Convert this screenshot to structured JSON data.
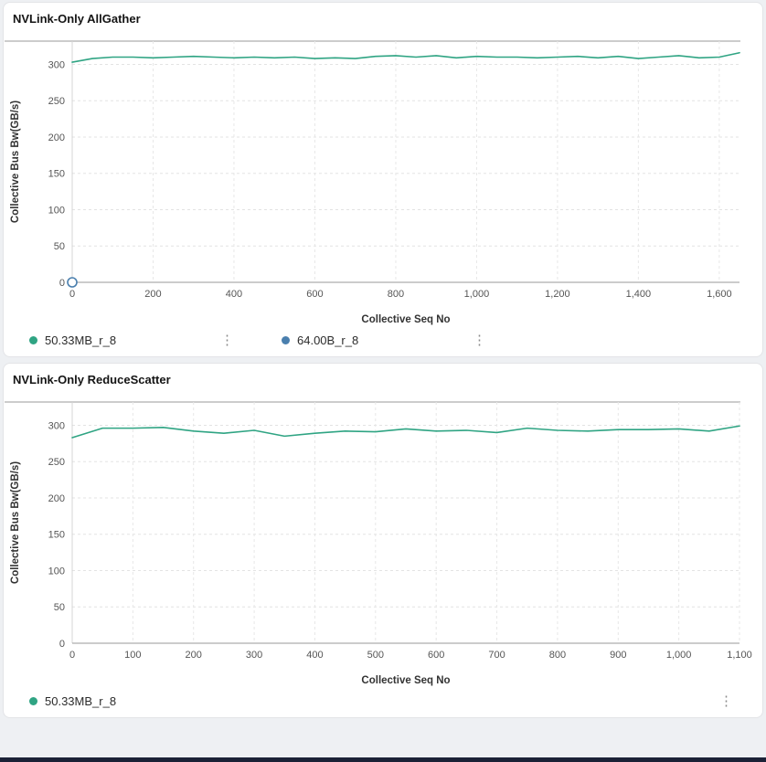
{
  "page": {
    "background": "#eef0f3",
    "accent_green": "#2fa483",
    "accent_blue": "#4a7fae"
  },
  "panels": [
    {
      "title": "NVLink-Only AllGather",
      "legend": [
        {
          "label": "50.33MB_r_8",
          "color": "#2fa483"
        },
        {
          "label": "64.00B_r_8",
          "color": "#4a7fae"
        }
      ]
    },
    {
      "title": "NVLink-Only ReduceScatter",
      "legend": [
        {
          "label": "50.33MB_r_8",
          "color": "#2fa483"
        }
      ]
    }
  ],
  "chart_data": [
    {
      "type": "line",
      "title": "NVLink-Only AllGather",
      "xlabel": "Collective Seq No",
      "ylabel": "Collective Bus Bw(GB/s)",
      "xlim": [
        0,
        1650
      ],
      "ylim": [
        0,
        332
      ],
      "xticks": [
        0,
        200,
        400,
        600,
        800,
        1000,
        1200,
        1400,
        1600
      ],
      "yticks": [
        0,
        50,
        100,
        150,
        200,
        250,
        300
      ],
      "grid": true,
      "legend_position": "bottom",
      "series": [
        {
          "name": "50.33MB_r_8",
          "color": "#2fa483",
          "style": "line",
          "x": [
            0,
            50,
            100,
            150,
            200,
            250,
            300,
            350,
            400,
            450,
            500,
            550,
            600,
            650,
            700,
            750,
            800,
            850,
            900,
            950,
            1000,
            1050,
            1100,
            1150,
            1200,
            1250,
            1300,
            1350,
            1400,
            1450,
            1500,
            1550,
            1600,
            1650
          ],
          "y": [
            303,
            308,
            310,
            310,
            309,
            310,
            311,
            310,
            309,
            310,
            309,
            310,
            308,
            309,
            308,
            311,
            312,
            310,
            312,
            309,
            311,
            310,
            310,
            309,
            310,
            311,
            309,
            311,
            308,
            310,
            312,
            309,
            310,
            316
          ]
        },
        {
          "name": "64.00B_r_8",
          "color": "#4a7fae",
          "style": "open-circle-marker",
          "x": [
            0
          ],
          "y": [
            0
          ]
        }
      ]
    },
    {
      "type": "line",
      "title": "NVLink-Only ReduceScatter",
      "xlabel": "Collective Seq No",
      "ylabel": "Collective Bus Bw(GB/s)",
      "xlim": [
        0,
        1100
      ],
      "ylim": [
        0,
        332
      ],
      "xticks": [
        0,
        100,
        200,
        300,
        400,
        500,
        600,
        700,
        800,
        900,
        1000,
        1100
      ],
      "yticks": [
        0,
        50,
        100,
        150,
        200,
        250,
        300
      ],
      "grid": true,
      "legend_position": "bottom",
      "series": [
        {
          "name": "50.33MB_r_8",
          "color": "#2fa483",
          "style": "line",
          "x": [
            0,
            50,
            100,
            150,
            200,
            250,
            300,
            350,
            400,
            450,
            500,
            550,
            600,
            650,
            700,
            750,
            800,
            850,
            900,
            950,
            1000,
            1050,
            1100
          ],
          "y": [
            283,
            296,
            296,
            297,
            292,
            289,
            293,
            285,
            289,
            292,
            291,
            295,
            292,
            293,
            290,
            296,
            293,
            292,
            294,
            294,
            295,
            292,
            299
          ]
        }
      ]
    }
  ]
}
